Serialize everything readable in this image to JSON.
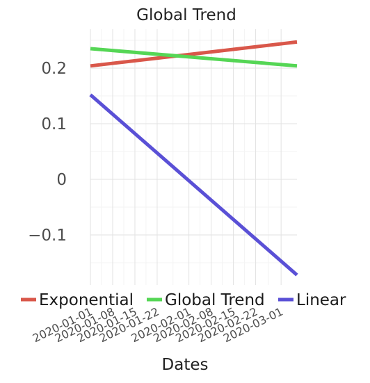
{
  "chart_data": {
    "type": "line",
    "title": "Global Trend",
    "xlabel": "Dates",
    "ylabel": "",
    "x": [
      "2020-01-01",
      "2020-03-06"
    ],
    "x_range": [
      "2020-01-01",
      "2020-03-06"
    ],
    "ylim": [
      -0.19,
      0.27
    ],
    "x_ticks": [
      "2020-01-01",
      "2020-01-08",
      "2020-01-15",
      "2020-01-22",
      "2020-02-01",
      "2020-02-08",
      "2020-02-15",
      "2020-02-22",
      "2020-03-01"
    ],
    "y_ticks": [
      {
        "value": 0.2,
        "label": "0.2"
      },
      {
        "value": 0.1,
        "label": "0.1"
      },
      {
        "value": 0,
        "label": "0"
      },
      {
        "value": -0.1,
        "label": "−0.1"
      }
    ],
    "grid": true,
    "legend_position": "bottom",
    "series": [
      {
        "name": "Exponential",
        "color": "#d9574a",
        "values": [
          0.204,
          0.247
        ]
      },
      {
        "name": "Global Trend",
        "color": "#55d655",
        "values": [
          0.235,
          0.204
        ]
      },
      {
        "name": "Linear",
        "color": "#5a50d6",
        "values": [
          0.152,
          -0.172
        ]
      }
    ]
  }
}
